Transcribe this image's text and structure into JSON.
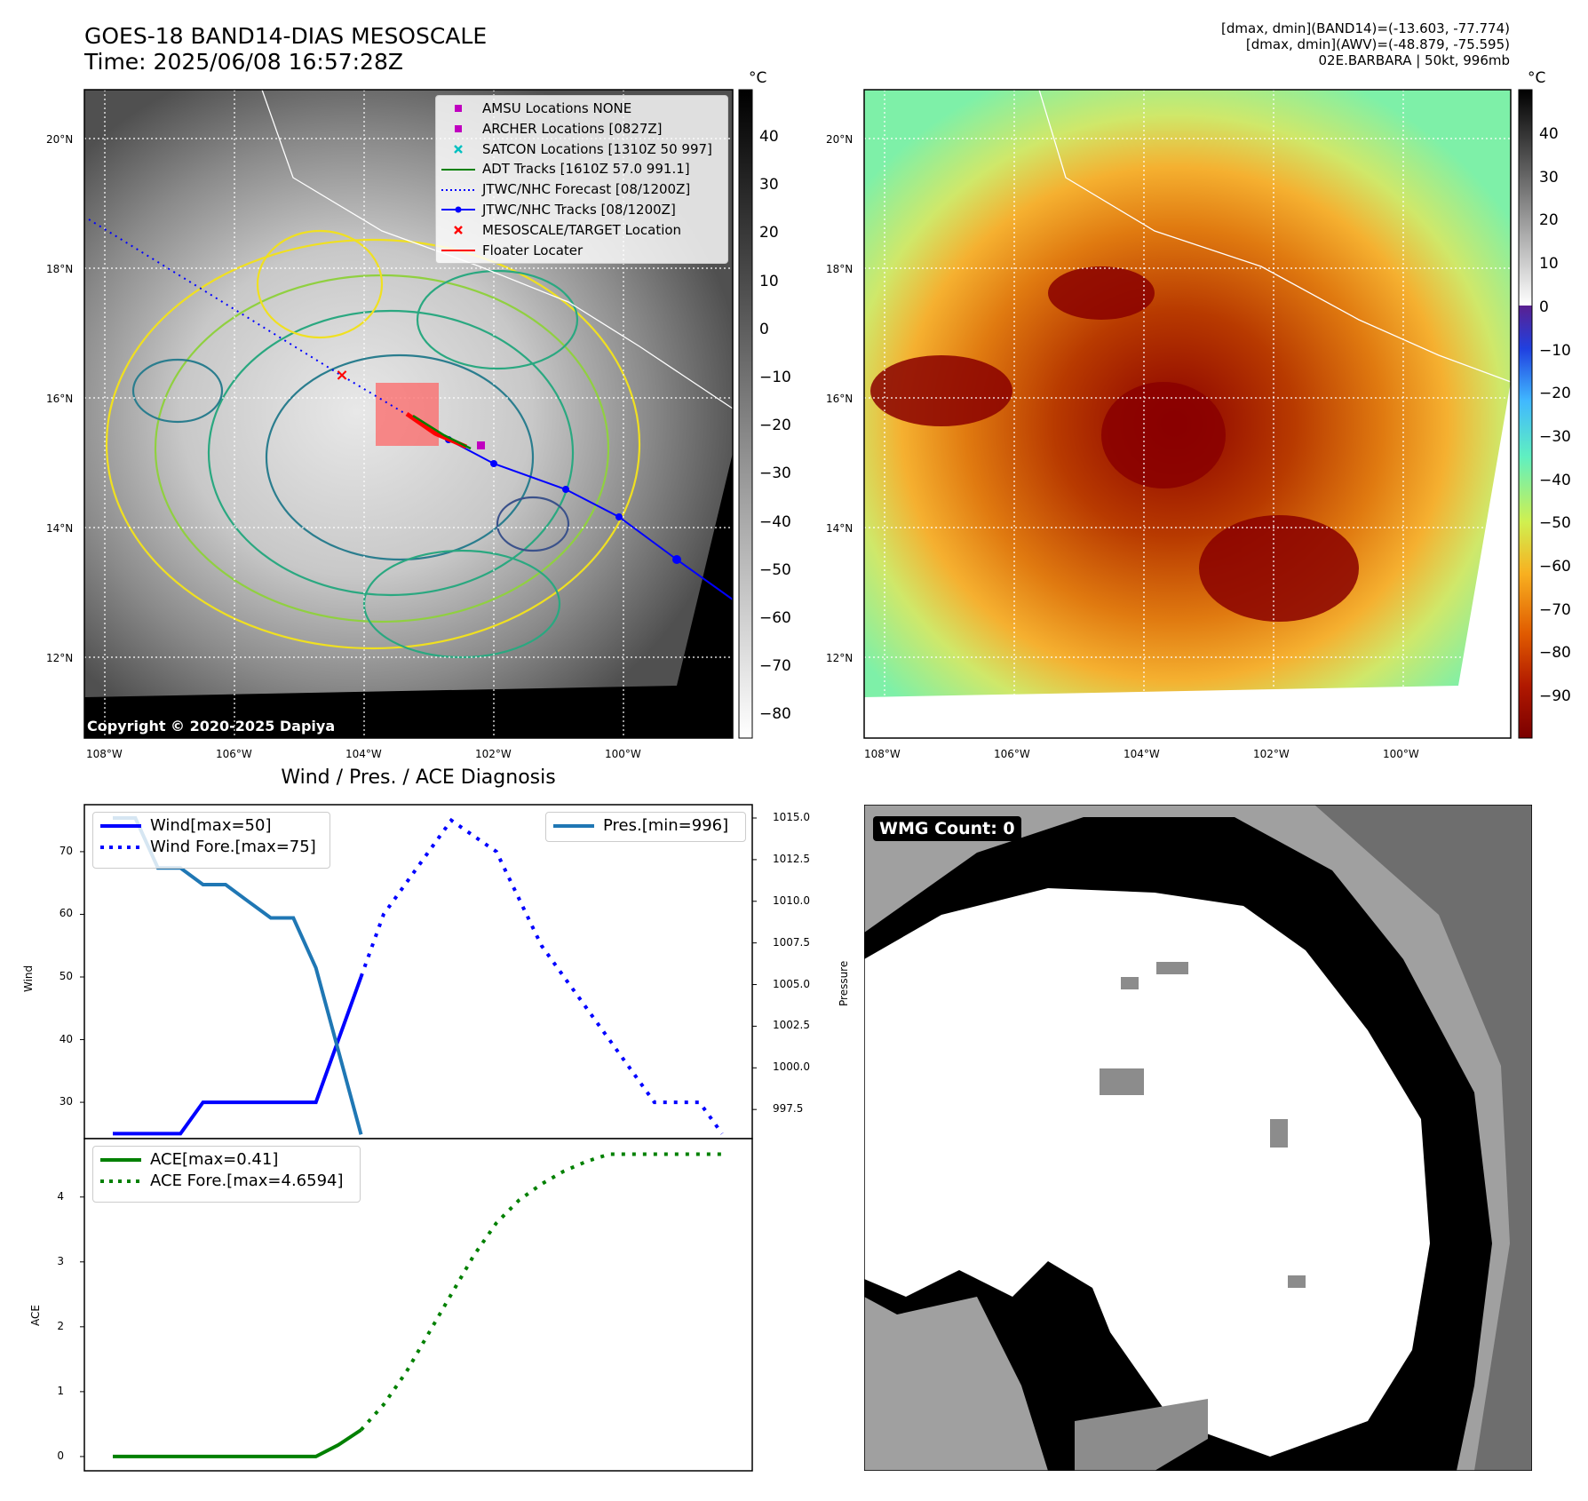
{
  "header": {
    "title_line1": "GOES-18 BAND14-DIAS MESOSCALE",
    "title_line2": "Time: 2025/06/08 16:57:28Z",
    "info_line1": "[dmax, dmin](BAND14)=(-13.603, -77.774)",
    "info_line2": "[dmax, dmin](AWV)=(-48.879, -75.595)",
    "info_line3": "02E.BARBARA | 50kt, 996mb"
  },
  "map_axes": {
    "lat_ticks": [
      "20°N",
      "18°N",
      "16°N",
      "14°N",
      "12°N"
    ],
    "lon_ticks": [
      "108°W",
      "106°W",
      "104°W",
      "102°W",
      "100°W"
    ]
  },
  "map_left": {
    "colorbar_unit": "°C",
    "colorbar_ticks": [
      "40",
      "30",
      "20",
      "10",
      "0",
      "−10",
      "−20",
      "−30",
      "−40",
      "−50",
      "−60",
      "−70",
      "−80"
    ],
    "copyright": "Copyright © 2020-2025 Dapiya",
    "legend": [
      {
        "label": "AMSU Locations NONE",
        "color": "#c000c0",
        "marker": "square"
      },
      {
        "label": "ARCHER Locations [0827Z]",
        "color": "#c000c0",
        "marker": "square"
      },
      {
        "label": "SATCON Locations [1310Z 50 997]",
        "color": "#00c0c0",
        "marker": "x"
      },
      {
        "label": "ADT Tracks [1610Z 57.0 991.1]",
        "color": "#008000",
        "marker": "line"
      },
      {
        "label": "JTWC/NHC Forecast [08/1200Z]",
        "color": "#0000ff",
        "marker": "dotted"
      },
      {
        "label": "JTWC/NHC Tracks [08/1200Z]",
        "color": "#0000ff",
        "marker": "line-dot"
      },
      {
        "label": "MESOSCALE/TARGET Location",
        "color": "#ff0000",
        "marker": "x"
      },
      {
        "label": "Floater Locater",
        "color": "#ff0000",
        "marker": "line"
      }
    ]
  },
  "map_right": {
    "colorbar_unit": "°C",
    "colorbar_ticks": [
      "40",
      "30",
      "20",
      "10",
      "0",
      "−10",
      "−20",
      "−30",
      "−40",
      "−50",
      "−60",
      "−70",
      "−80",
      "−90"
    ]
  },
  "wmg": {
    "badge": "WMG Count: 0"
  },
  "chart_data": [
    {
      "type": "line",
      "title": "Wind / Pres. / ACE Diagnosis",
      "ylabel": "Wind",
      "ylabel_right": "Pressure",
      "ylim": [
        24.2,
        77.5
      ],
      "ylim_right": [
        995.75,
        1015.8
      ],
      "yticks": [
        30,
        40,
        50,
        60,
        70
      ],
      "yticks_right": [
        "997.5",
        "1000.0",
        "1002.5",
        "1005.0",
        "1007.5",
        "1010.0",
        "1012.5",
        "1015.0"
      ],
      "legend_left": [
        "Wind[max=50]",
        "Wind Fore.[max=75]"
      ],
      "legend_right": [
        "Pres.[min=996]"
      ],
      "series": [
        {
          "name": "Wind[max=50]",
          "style": "solid",
          "color": "#0000ff",
          "axis": "left",
          "x": [
            0,
            1,
            2,
            3,
            4,
            5,
            6,
            7,
            8,
            9,
            10,
            11
          ],
          "values": [
            25,
            25,
            25,
            25,
            30,
            30,
            30,
            30,
            30,
            30,
            40,
            50
          ]
        },
        {
          "name": "Wind Fore.[max=75]",
          "style": "dotted",
          "color": "#0000ff",
          "axis": "left",
          "x": [
            11,
            12,
            13,
            14,
            15,
            16,
            17,
            18,
            19,
            20,
            21,
            22,
            23,
            24,
            25,
            26,
            27
          ],
          "values": [
            50,
            60,
            65,
            70,
            75,
            72.5,
            70,
            62.5,
            55,
            50,
            45,
            40,
            35,
            30,
            30,
            30,
            25
          ]
        },
        {
          "name": "Pres.[min=996]",
          "style": "solid",
          "color": "#1f77b4",
          "axis": "right",
          "x": [
            0,
            1,
            2,
            3,
            4,
            5,
            6,
            7,
            8,
            9,
            10,
            11
          ],
          "values": [
            1015,
            1015,
            1012,
            1012,
            1011,
            1011,
            1010,
            1009,
            1009,
            1006,
            1001,
            996
          ]
        }
      ]
    },
    {
      "type": "line",
      "ylabel": "ACE",
      "ylim": [
        -0.22,
        4.9
      ],
      "yticks": [
        0,
        1,
        2,
        3,
        4
      ],
      "legend": [
        "ACE[max=0.41]",
        "ACE Fore.[max=4.6594]"
      ],
      "series": [
        {
          "name": "ACE[max=0.41]",
          "style": "solid",
          "color": "#008000",
          "x": [
            0,
            1,
            2,
            3,
            4,
            5,
            6,
            7,
            8,
            9,
            10,
            11
          ],
          "values": [
            0,
            0,
            0,
            0,
            0,
            0,
            0,
            0,
            0,
            0,
            0.18,
            0.41
          ]
        },
        {
          "name": "ACE Fore.[max=4.6594]",
          "style": "dotted",
          "color": "#008000",
          "x": [
            11,
            12,
            13,
            14,
            15,
            16,
            17,
            18,
            19,
            20,
            21,
            22,
            23,
            24,
            25,
            26,
            27
          ],
          "values": [
            0.41,
            0.8,
            1.3,
            1.9,
            2.5,
            3.1,
            3.6,
            3.95,
            4.2,
            4.4,
            4.55,
            4.66,
            4.66,
            4.66,
            4.66,
            4.66,
            4.66
          ]
        }
      ]
    }
  ]
}
